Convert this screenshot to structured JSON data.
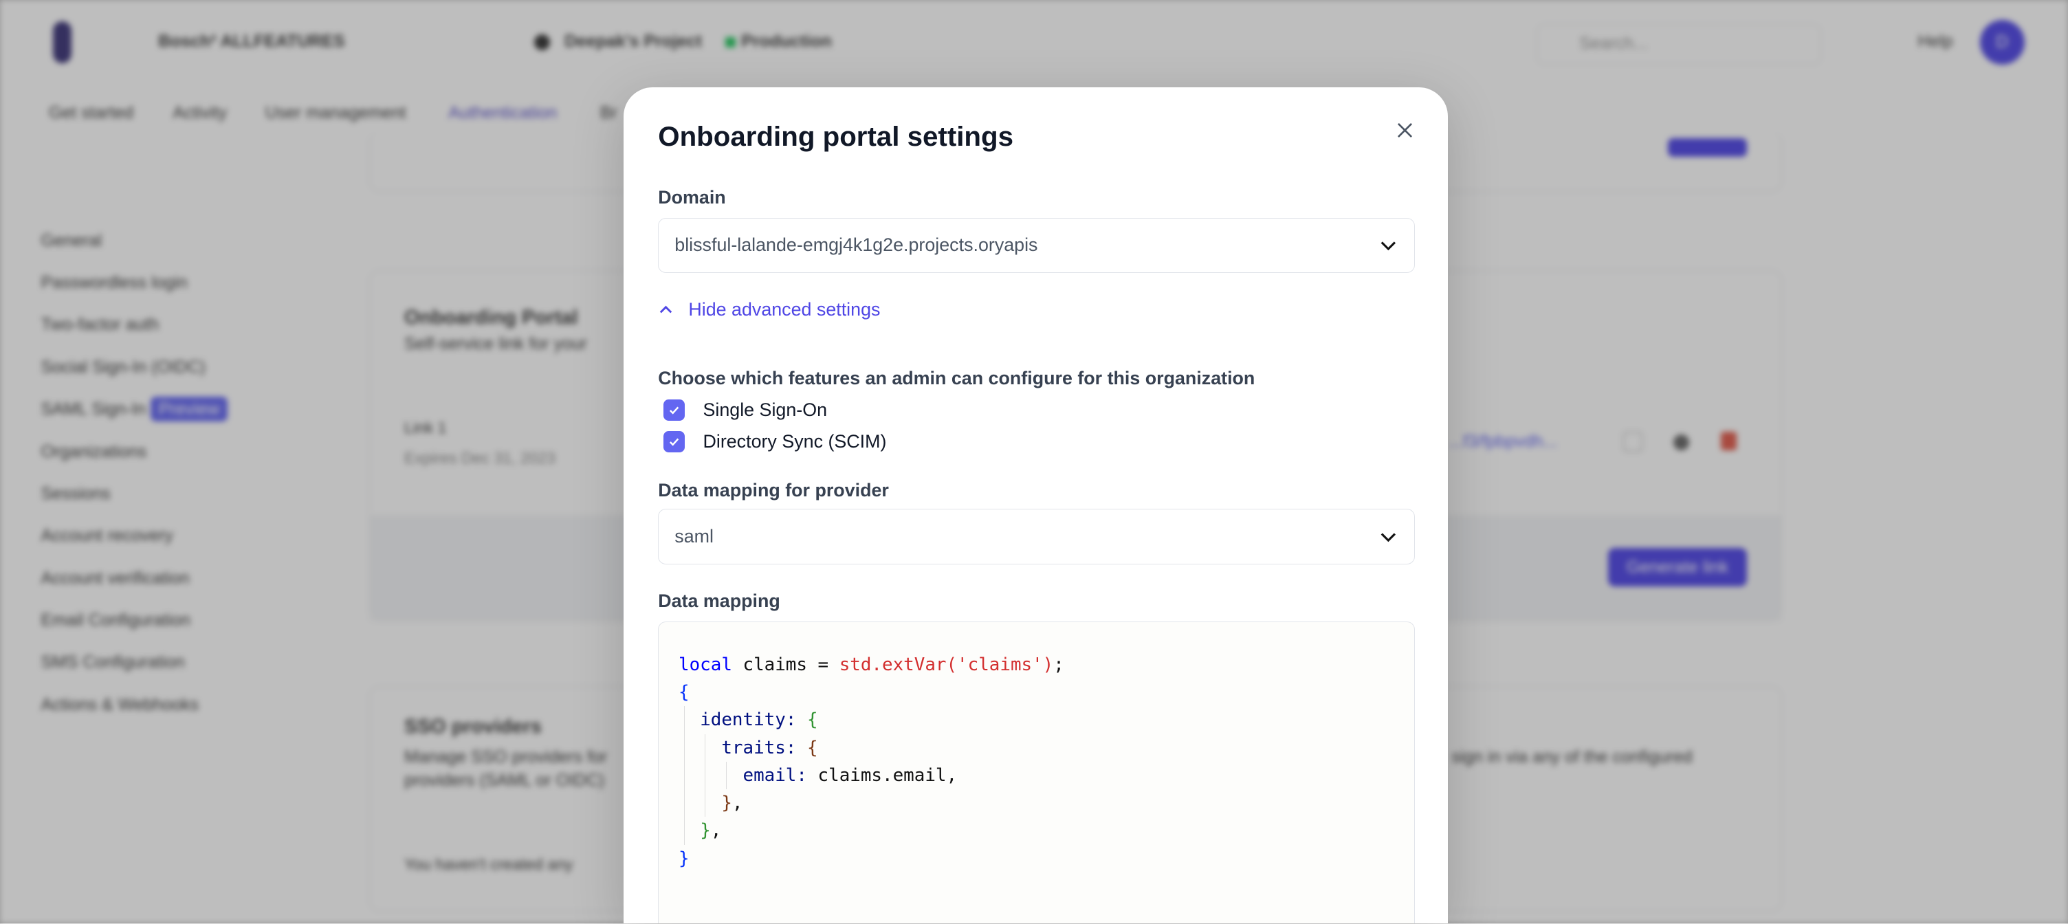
{
  "background": {
    "topbar": {
      "workspace": "Bosch² ALLFEATURES",
      "project": "Deepak's Project",
      "environment": "Production",
      "search_placeholder": "Search...",
      "help": "Help",
      "avatar_initial": "D"
    },
    "tabs": [
      "Get started",
      "Activity",
      "User management",
      "Authentication",
      "Br"
    ],
    "active_tab": "Authentication",
    "sidebar": [
      "General",
      "Passwordless login",
      "Two-factor auth",
      "Social Sign-In (OIDC)",
      "SAML Sign-In",
      "Organizations",
      "Sessions",
      "Account recovery",
      "Account verification",
      "Email Configuration",
      "SMS Configuration",
      "Actions & Webhooks"
    ],
    "sidebar_badge": "Preview",
    "portal": {
      "title": "Onboarding Portal",
      "subtitle": "Self-service link for your",
      "link_name": "Link 1",
      "link_expiry": "Expires Dec 31, 2023",
      "link_url": "...f3/fpbpvdh...",
      "generate": "Generate link"
    },
    "sso": {
      "title": "SSO providers",
      "desc1": "Manage SSO providers for",
      "desc1_end": "sign in via any of the configured",
      "desc2": "providers (SAML or OIDC)",
      "empty": "You haven't created any"
    }
  },
  "modal": {
    "title": "Onboarding portal settings",
    "domain_label": "Domain",
    "domain_value": "blissful-lalande-emgj4k1g2e.projects.oryapis",
    "toggle_advanced": "Hide advanced settings",
    "features_label": "Choose which features an admin can configure for this organization",
    "features": [
      {
        "label": "Single Sign-On",
        "checked": true
      },
      {
        "label": "Directory Sync (SCIM)",
        "checked": true
      }
    ],
    "provider_label": "Data mapping for provider",
    "provider_value": "saml",
    "mapping_label": "Data mapping",
    "code": {
      "l1_kw": "local",
      "l1_var": " claims = ",
      "l1_fn": "std.extVar('claims')",
      "l1_end": ";",
      "l2": "{",
      "l3_prop": "identity:",
      "l3_b": " {",
      "l4_prop": "traits:",
      "l4_b": " {",
      "l5_prop": "email:",
      "l5_val": " claims.email,",
      "l6_b": "}",
      "l6_end": ",",
      "l7_b": "}",
      "l7_end": ",",
      "l8": "}"
    }
  },
  "colors": {
    "accent": "#6366f1",
    "link": "#4f46e5",
    "avatar": "#4f46e5",
    "production": "#22c55e"
  }
}
